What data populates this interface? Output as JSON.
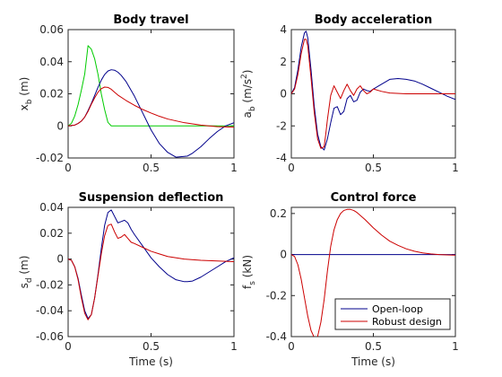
{
  "chart_data": [
    {
      "type": "line",
      "title": "Body travel",
      "xlabel": "",
      "ylabel_main": "x",
      "ylabel_sub": "b",
      "ylabel_unit": " (m)",
      "xlim": [
        0,
        1
      ],
      "ylim": [
        -0.02,
        0.06
      ],
      "xticks": [
        0,
        0.5,
        1
      ],
      "xtick_labels": [
        "0",
        "0.5",
        "1"
      ],
      "yticks": [
        -0.02,
        0,
        0.02,
        0.04,
        0.06
      ],
      "ytick_labels": [
        "-0.02",
        "0",
        "0.02",
        "0.04",
        "0.06"
      ],
      "series": [
        {
          "color": "#00cc00",
          "x": [
            0,
            0.02,
            0.04,
            0.06,
            0.08,
            0.1,
            0.12,
            0.14,
            0.16,
            0.18,
            0.2,
            0.22,
            0.24,
            0.26,
            0.3,
            0.5,
            0.75,
            1.0
          ],
          "y": [
            0,
            0.0016,
            0.0062,
            0.0133,
            0.0223,
            0.0323,
            0.05,
            0.0478,
            0.0418,
            0.0322,
            0.02,
            0.0102,
            0.0022,
            0,
            0,
            0,
            0,
            0
          ]
        },
        {
          "color": "#00008b",
          "x": [
            0,
            0.04,
            0.06,
            0.08,
            0.1,
            0.12,
            0.14,
            0.16,
            0.18,
            0.2,
            0.22,
            0.24,
            0.26,
            0.28,
            0.3,
            0.32,
            0.35,
            0.4,
            0.45,
            0.5,
            0.55,
            0.6,
            0.65,
            0.7,
            0.72,
            0.75,
            0.8,
            0.85,
            0.9,
            0.95,
            1.0
          ],
          "y": [
            0,
            0.0005,
            0.0015,
            0.003,
            0.0055,
            0.0095,
            0.014,
            0.019,
            0.024,
            0.0285,
            0.032,
            0.0342,
            0.035,
            0.0347,
            0.0335,
            0.0315,
            0.0275,
            0.0185,
            0.008,
            -0.0025,
            -0.011,
            -0.0165,
            -0.0195,
            -0.019,
            -0.0188,
            -0.017,
            -0.013,
            -0.008,
            -0.0035,
            0.0,
            0.002
          ]
        },
        {
          "color": "#cc0000",
          "x": [
            0,
            0.04,
            0.06,
            0.08,
            0.1,
            0.12,
            0.14,
            0.16,
            0.18,
            0.2,
            0.22,
            0.24,
            0.26,
            0.28,
            0.3,
            0.35,
            0.4,
            0.45,
            0.5,
            0.55,
            0.6,
            0.7,
            0.8,
            0.9,
            1.0
          ],
          "y": [
            0,
            0.0005,
            0.0015,
            0.003,
            0.0055,
            0.009,
            0.0135,
            0.0175,
            0.021,
            0.0232,
            0.0242,
            0.024,
            0.0228,
            0.021,
            0.0192,
            0.0158,
            0.0128,
            0.0102,
            0.008,
            0.006,
            0.0043,
            0.002,
            0.0005,
            -0.0005,
            -0.0008
          ]
        }
      ]
    },
    {
      "type": "line",
      "title": "Body acceleration",
      "xlabel": "",
      "ylabel_main": "a",
      "ylabel_sub": "b",
      "ylabel_unit": " (m/s",
      "ylabel_sup": "2",
      "ylabel_end": ")",
      "xlim": [
        0,
        1
      ],
      "ylim": [
        -4,
        4
      ],
      "xticks": [
        0,
        0.5,
        1
      ],
      "xtick_labels": [
        "0",
        "0.5",
        "1"
      ],
      "yticks": [
        -4,
        -2,
        0,
        2,
        4
      ],
      "ytick_labels": [
        "-4",
        "-2",
        "0",
        "2",
        "4"
      ],
      "series": [
        {
          "color": "#00008b",
          "x": [
            0,
            0.02,
            0.04,
            0.06,
            0.08,
            0.09,
            0.1,
            0.12,
            0.14,
            0.16,
            0.18,
            0.2,
            0.22,
            0.24,
            0.26,
            0.28,
            0.3,
            0.32,
            0.34,
            0.36,
            0.38,
            0.4,
            0.42,
            0.44,
            0.46,
            0.48,
            0.5,
            0.55,
            0.6,
            0.65,
            0.7,
            0.75,
            0.8,
            0.85,
            0.9,
            0.95,
            1.0
          ],
          "y": [
            0,
            0.4,
            1.5,
            2.9,
            3.8,
            3.9,
            3.5,
            1.5,
            -0.8,
            -2.5,
            -3.3,
            -3.5,
            -2.8,
            -1.8,
            -0.9,
            -0.8,
            -1.3,
            -1.1,
            -0.3,
            -0.1,
            -0.5,
            -0.4,
            0.1,
            0.3,
            0.2,
            0.15,
            0.3,
            0.6,
            0.9,
            0.95,
            0.9,
            0.8,
            0.6,
            0.35,
            0.1,
            -0.15,
            -0.35
          ]
        },
        {
          "color": "#cc0000",
          "x": [
            0,
            0.02,
            0.04,
            0.06,
            0.08,
            0.09,
            0.1,
            0.12,
            0.14,
            0.16,
            0.18,
            0.2,
            0.21,
            0.22,
            0.24,
            0.26,
            0.28,
            0.3,
            0.32,
            0.34,
            0.36,
            0.38,
            0.4,
            0.42,
            0.44,
            0.46,
            0.48,
            0.5,
            0.55,
            0.6,
            0.7,
            0.8,
            0.9,
            1.0
          ],
          "y": [
            0,
            0.3,
            1.2,
            2.5,
            3.4,
            3.4,
            3.0,
            1.0,
            -1.2,
            -2.8,
            -3.4,
            -3.3,
            -2.5,
            -1.6,
            -0.1,
            0.5,
            0.1,
            -0.3,
            0.2,
            0.6,
            0.2,
            -0.1,
            0.3,
            0.5,
            0.2,
            0.0,
            0.1,
            0.3,
            0.15,
            0.05,
            0.0,
            0.0,
            0.0,
            0.0
          ]
        }
      ]
    },
    {
      "type": "line",
      "title": "Suspension deflection",
      "xlabel": "Time (s)",
      "ylabel_main": "s",
      "ylabel_sub": "d",
      "ylabel_unit": " (m)",
      "xlim": [
        0,
        1
      ],
      "ylim": [
        -0.06,
        0.04
      ],
      "xticks": [
        0,
        0.5,
        1
      ],
      "xtick_labels": [
        "0",
        "0.5",
        "1"
      ],
      "yticks": [
        -0.06,
        -0.04,
        -0.02,
        0,
        0.02,
        0.04
      ],
      "ytick_labels": [
        "-0.06",
        "-0.04",
        "-0.02",
        "0",
        "0.02",
        "0.04"
      ],
      "series": [
        {
          "color": "#00008b",
          "x": [
            0,
            0.02,
            0.04,
            0.06,
            0.08,
            0.1,
            0.12,
            0.14,
            0.16,
            0.18,
            0.2,
            0.22,
            0.24,
            0.26,
            0.28,
            0.3,
            0.32,
            0.34,
            0.36,
            0.38,
            0.4,
            0.45,
            0.5,
            0.55,
            0.6,
            0.65,
            0.7,
            0.72,
            0.75,
            0.8,
            0.85,
            0.9,
            0.95,
            1.0
          ],
          "y": [
            0,
            -0.001,
            -0.006,
            -0.015,
            -0.028,
            -0.04,
            -0.046,
            -0.043,
            -0.03,
            -0.012,
            0.008,
            0.026,
            0.036,
            0.038,
            0.033,
            0.028,
            0.029,
            0.03,
            0.028,
            0.023,
            0.019,
            0.01,
            0.001,
            -0.006,
            -0.012,
            -0.016,
            -0.0175,
            -0.0175,
            -0.017,
            -0.014,
            -0.01,
            -0.006,
            -0.002,
            0.001
          ]
        },
        {
          "color": "#cc0000",
          "x": [
            0,
            0.02,
            0.04,
            0.06,
            0.08,
            0.1,
            0.12,
            0.14,
            0.16,
            0.18,
            0.2,
            0.22,
            0.24,
            0.26,
            0.28,
            0.3,
            0.32,
            0.34,
            0.36,
            0.38,
            0.4,
            0.45,
            0.5,
            0.55,
            0.6,
            0.7,
            0.8,
            0.9,
            1.0
          ],
          "y": [
            0,
            -0.001,
            -0.006,
            -0.016,
            -0.03,
            -0.042,
            -0.047,
            -0.043,
            -0.03,
            -0.013,
            0.004,
            0.018,
            0.026,
            0.027,
            0.021,
            0.016,
            0.017,
            0.019,
            0.016,
            0.013,
            0.012,
            0.009,
            0.006,
            0.004,
            0.002,
            0.0,
            -0.001,
            -0.0015,
            -0.002
          ]
        }
      ]
    },
    {
      "type": "line",
      "title": "Control force",
      "xlabel": "Time (s)",
      "ylabel_main": "f",
      "ylabel_sub": "s",
      "ylabel_unit": " (kN)",
      "xlim": [
        0,
        1
      ],
      "ylim": [
        -0.4,
        0.23
      ],
      "xticks": [
        0,
        0.5,
        1
      ],
      "xtick_labels": [
        "0",
        "0.5",
        "1"
      ],
      "yticks": [
        -0.4,
        -0.2,
        0,
        0.2
      ],
      "ytick_labels": [
        "-0.4",
        "-0.2",
        "0",
        "0.2"
      ],
      "legend": {
        "placement": "bottom-right",
        "entries": [
          "Open-loop",
          "Robust design"
        ]
      },
      "series": [
        {
          "color": "#00008b",
          "name": "Open-loop",
          "x": [
            0,
            1.0
          ],
          "y": [
            0,
            0
          ]
        },
        {
          "color": "#cc0000",
          "name": "Robust design",
          "x": [
            0,
            0.02,
            0.04,
            0.06,
            0.08,
            0.1,
            0.12,
            0.14,
            0.15,
            0.16,
            0.18,
            0.2,
            0.22,
            0.24,
            0.26,
            0.28,
            0.3,
            0.32,
            0.34,
            0.36,
            0.38,
            0.4,
            0.45,
            0.5,
            0.55,
            0.6,
            0.65,
            0.7,
            0.75,
            0.8,
            0.85,
            0.9,
            0.95,
            1.0
          ],
          "y": [
            0,
            -0.01,
            -0.05,
            -0.12,
            -0.21,
            -0.3,
            -0.37,
            -0.405,
            -0.41,
            -0.4,
            -0.33,
            -0.22,
            -0.08,
            0.04,
            0.12,
            0.17,
            0.2,
            0.215,
            0.22,
            0.22,
            0.215,
            0.205,
            0.17,
            0.13,
            0.095,
            0.065,
            0.045,
            0.028,
            0.016,
            0.008,
            0.003,
            0.0,
            -0.002,
            -0.003
          ]
        }
      ]
    }
  ]
}
